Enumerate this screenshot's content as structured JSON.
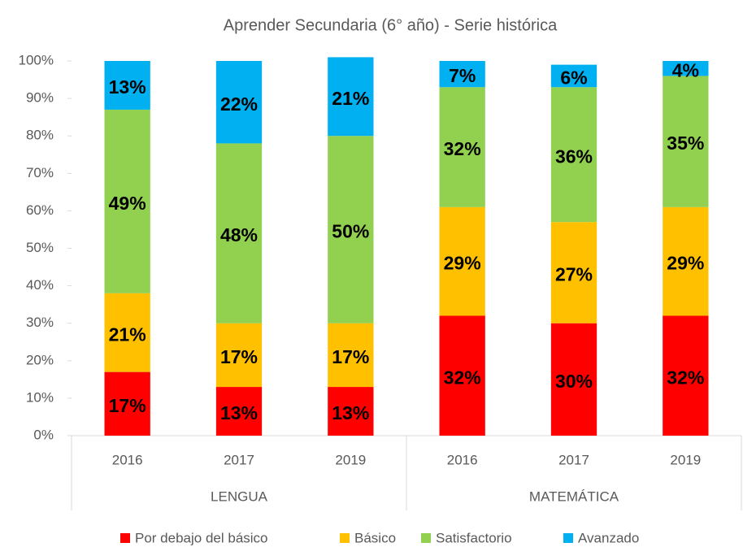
{
  "chart_data": {
    "type": "stacked-bar",
    "title": "Aprender Secundaria (6° año) - Serie histórica",
    "categories": [
      "2016",
      "2017",
      "2019",
      "2016",
      "2017",
      "2019"
    ],
    "groups": [
      "LENGUA",
      "MATEMÁTICA"
    ],
    "series": [
      {
        "name": "Por debajo del básico",
        "color": "#ff0000",
        "values": [
          17,
          13,
          13,
          32,
          30,
          32
        ],
        "value_labels": [
          "17%",
          "13%",
          "13%",
          "32%",
          "30%",
          "32%"
        ]
      },
      {
        "name": "Básico",
        "color": "#ffc000",
        "values": [
          21,
          17,
          17,
          29,
          27,
          29
        ],
        "value_labels": [
          "21%",
          "17%",
          "17%",
          "29%",
          "27%",
          "29%"
        ]
      },
      {
        "name": "Satisfactorio",
        "color": "#92d050",
        "values": [
          49,
          48,
          50,
          32,
          36,
          35
        ],
        "value_labels": [
          "49%",
          "48%",
          "50%",
          "32%",
          "36%",
          "35%"
        ]
      },
      {
        "name": "Avanzado",
        "color": "#00b0f0",
        "values": [
          13,
          22,
          21,
          7,
          6,
          4
        ],
        "value_labels": [
          "13%",
          "22%",
          "21%",
          "7%",
          "6%",
          "4%"
        ]
      }
    ],
    "ylim": [
      0,
      100
    ],
    "yticks": [
      {
        "value": 0,
        "label": "0%"
      },
      {
        "value": 10,
        "label": "10%"
      },
      {
        "value": 20,
        "label": "20%"
      },
      {
        "value": 30,
        "label": "30%"
      },
      {
        "value": 40,
        "label": "40%"
      },
      {
        "value": 50,
        "label": "50%"
      },
      {
        "value": 60,
        "label": "60%"
      },
      {
        "value": 70,
        "label": "70%"
      },
      {
        "value": 80,
        "label": "80%"
      },
      {
        "value": 90,
        "label": "90%"
      },
      {
        "value": 100,
        "label": "100%"
      }
    ],
    "grid": false,
    "legend": "bottom"
  }
}
